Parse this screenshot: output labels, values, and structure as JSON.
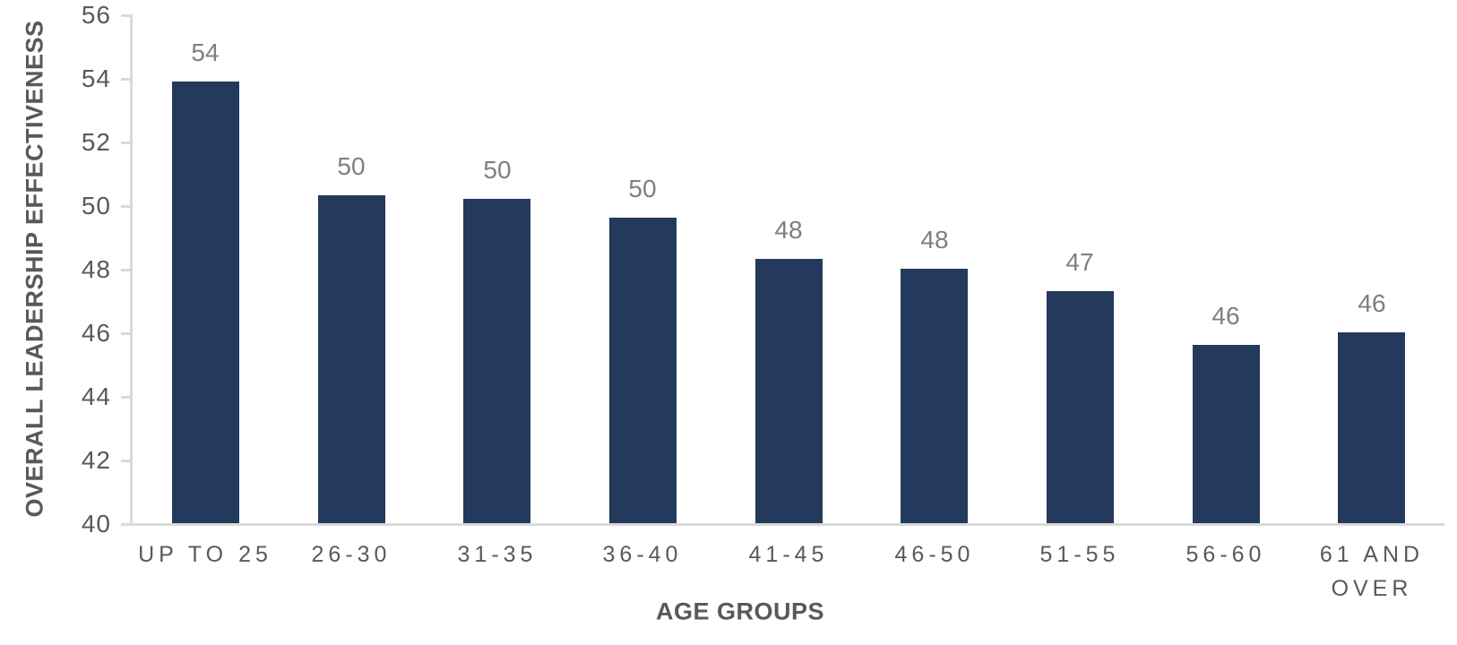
{
  "chart_data": {
    "type": "bar",
    "title": "",
    "xlabel": "AGE GROUPS",
    "ylabel": "OVERALL LEADERSHIP EFFECTIVENESS",
    "categories": [
      "UP TO 25",
      "26-30",
      "31-35",
      "36-40",
      "41-45",
      "46-50",
      "51-55",
      "56-60",
      "61 AND OVER"
    ],
    "category_lines": [
      [
        "UP TO 25"
      ],
      [
        "26-30"
      ],
      [
        "31-35"
      ],
      [
        "36-40"
      ],
      [
        "41-45"
      ],
      [
        "46-50"
      ],
      [
        "51-55"
      ],
      [
        "56-60"
      ],
      [
        "61 AND",
        "OVER"
      ]
    ],
    "values": [
      53.9,
      50.3,
      50.2,
      49.6,
      48.3,
      48.0,
      47.3,
      45.6,
      46.0
    ],
    "bar_labels": [
      "54",
      "50",
      "50",
      "50",
      "48",
      "48",
      "47",
      "46",
      "46"
    ],
    "ylim": [
      40,
      56
    ],
    "yticks": [
      40,
      42,
      44,
      46,
      48,
      50,
      52,
      54,
      56
    ],
    "grid": false,
    "legend": false,
    "colors": {
      "bar": "#243A5C",
      "axis_line": "#D9D9D9",
      "tick_label": "#595959",
      "axis_title": "#595959",
      "data_label": "#7F7F7F",
      "background": "#FFFFFF"
    }
  }
}
